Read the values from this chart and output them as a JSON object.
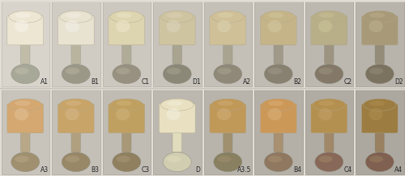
{
  "figsize": [
    5.0,
    2.18
  ],
  "dpi": 100,
  "outer_bg": "#e2ddd5",
  "row1": {
    "labels": [
      "A1",
      "B1",
      "C1",
      "D1",
      "A2",
      "B2",
      "C2",
      "D2"
    ],
    "tooth_colors": [
      "#ede6d3",
      "#e8e2d0",
      "#ddd4b0",
      "#cfc4a0",
      "#cfc098",
      "#c4b488",
      "#b8ae88",
      "#a89a78"
    ],
    "tooth_highlight": [
      "#f8f4ec",
      "#f4f0e8",
      "#eee8cc",
      "#ddd4bc",
      "#ddd4b0",
      "#d4c8a0",
      "#ccc498",
      "#bdb090"
    ],
    "shadow_colors": [
      "#c8c0a8",
      "#c0b89c",
      "#b0a880",
      "#a09070",
      "#9c9068",
      "#8c8060",
      "#84785c",
      "#786850"
    ],
    "handle_colors": [
      "#a8a898",
      "#9c9888",
      "#989080",
      "#8c8878",
      "#908878",
      "#888070",
      "#847868",
      "#7c7260"
    ],
    "handle_stem": [
      "#c0bca8",
      "#b8b49e",
      "#b0ac98",
      "#a8a490",
      "#a8a490",
      "#a09888",
      "#9c9480",
      "#948c78"
    ],
    "bg_colors": [
      "#d8d4cc",
      "#d0ccC4",
      "#ccc8c0",
      "#c8c4bc",
      "#c4c0b8",
      "#c0bcb4",
      "#bcb8b0",
      "#b8b4ac"
    ],
    "cell_border": [
      "#c0bcb4",
      "#b8b4ac",
      "#b4b0a8",
      "#b0aca4",
      "#aca8a0",
      "#a8a49c",
      "#a4a098",
      "#a09c94"
    ]
  },
  "row2": {
    "labels": [
      "A3",
      "B3",
      "C3",
      "D",
      "A3.5",
      "B4",
      "C4",
      "A4"
    ],
    "tooth_colors": [
      "#d4a870",
      "#c8a468",
      "#c0a060",
      "#e8e0c0",
      "#c09858",
      "#cc9858",
      "#b49050",
      "#9c7c40"
    ],
    "tooth_highlight": [
      "#e4c098",
      "#d8b888",
      "#d0b47c",
      "#f4f0e0",
      "#d0ae78",
      "#dab078",
      "#c4a068",
      "#b09050"
    ],
    "shadow_colors": [
      "#a87840",
      "#9c7038",
      "#946c34",
      "#c0b890",
      "#906838",
      "#9c6c38",
      "#8a6430",
      "#745428"
    ],
    "handle_colors": [
      "#a09070",
      "#988868",
      "#908060",
      "#d0cdb0",
      "#888060",
      "#907860",
      "#886858",
      "#806050"
    ],
    "handle_stem": [
      "#b8a888",
      "#b0a080",
      "#a89878",
      "#e0dcbc",
      "#a09070",
      "#a89070",
      "#a08868",
      "#988060"
    ],
    "bg_colors": [
      "#c8c4bc",
      "#c4c0b8",
      "#c0bcb4",
      "#bcb8b0",
      "#b8b4ac",
      "#b4b0a8",
      "#b0aca4",
      "#aca8a0"
    ],
    "cell_border": [
      "#b0aca4",
      "#aca8a0",
      "#a8a49c",
      "#a4a098",
      "#a09c94",
      "#9c9890",
      "#98948c",
      "#949088"
    ]
  },
  "label_fontsize": 5.5,
  "label_color": "#222222",
  "row_separator_color": "#c0bcb4",
  "n_cols": 8
}
